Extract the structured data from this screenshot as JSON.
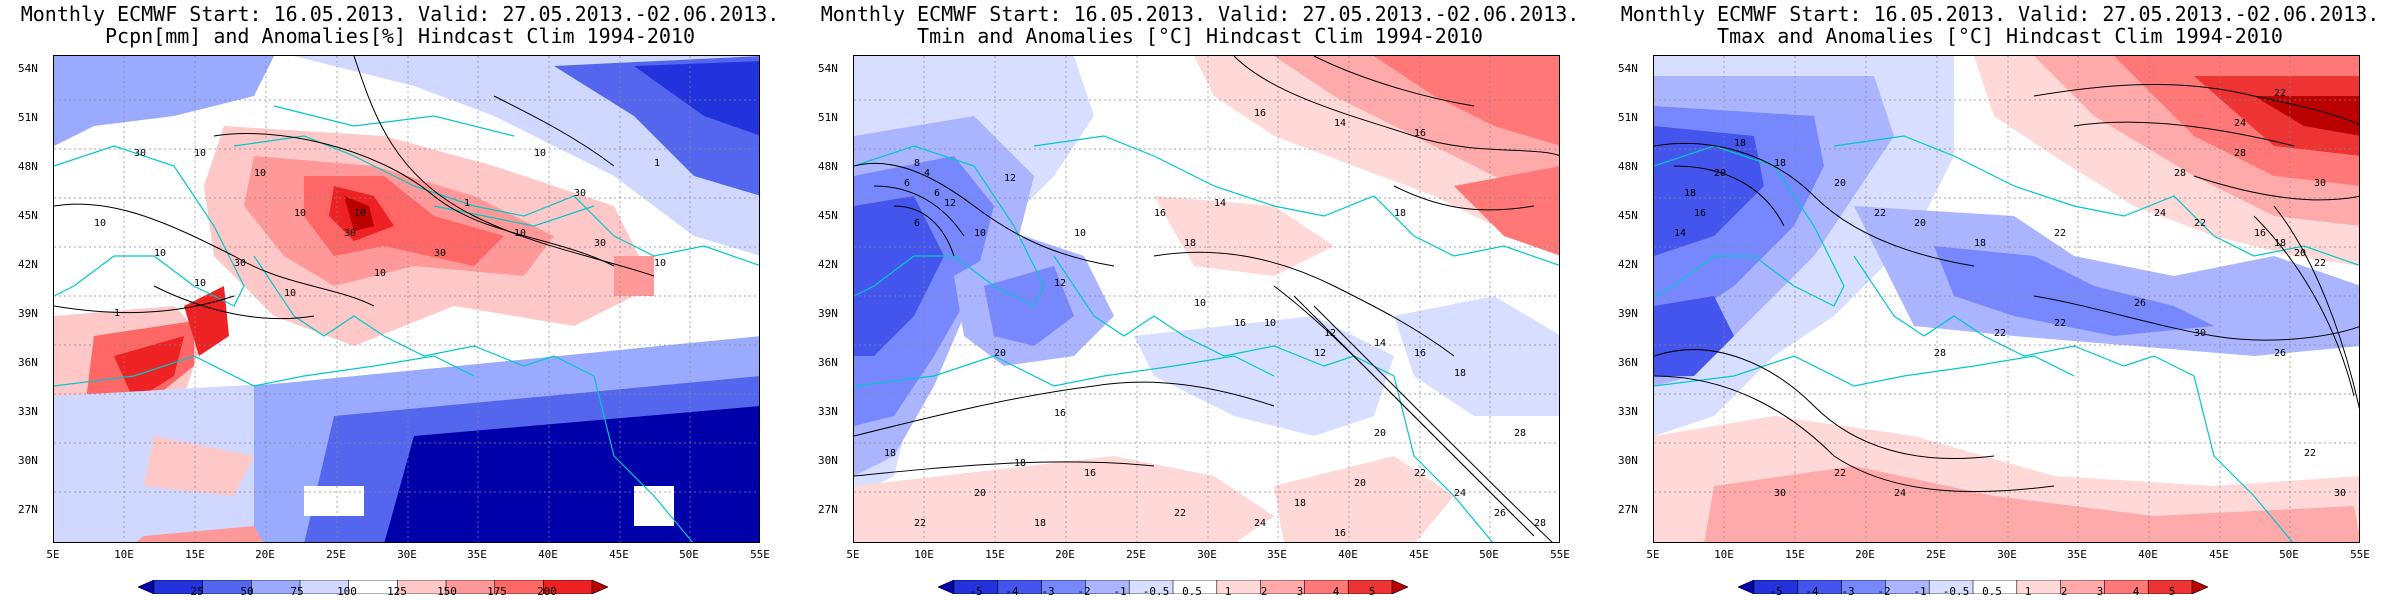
{
  "panels": [
    {
      "title_line1": "Monthly ECMWF Start: 16.05.2013. Valid: 27.05.2013.-02.06.2013.",
      "title_line2": "Pcpn[mm] and Anomalies[%] Hindcast Clim 1994-2010",
      "colorbar_labels": [
        "25",
        "50",
        "75",
        "100",
        "125",
        "150",
        "175",
        "200"
      ],
      "colorbar_colors": [
        "#0000aa",
        "#2233dd",
        "#5566ee",
        "#99aaff",
        "#d0d8ff",
        "#ffffff",
        "#ffc8c8",
        "#ff9999",
        "#ff6666",
        "#ee2222",
        "#bb0000"
      ],
      "contour_labels": [
        "30",
        "10",
        "10",
        "30",
        "1",
        "10",
        "30",
        "30",
        "1",
        "10",
        "10",
        "30",
        "10",
        "1",
        "10",
        "30",
        "10",
        "1",
        "10",
        "1",
        "10",
        "10",
        "30",
        "1",
        "30"
      ]
    },
    {
      "title_line1": "Monthly ECMWF Start: 16.05.2013. Valid: 27.05.2013.-02.06.2013.",
      "title_line2": "Tmin and Anomalies [°C] Hindcast Clim 1994-2010",
      "colorbar_labels": [
        "-5",
        "-4",
        "-3",
        "-2",
        "-1",
        "-0.5",
        "0.5",
        "1",
        "2",
        "3",
        "4",
        "5"
      ],
      "colorbar_colors": [
        "#0000aa",
        "#2233dd",
        "#4455ee",
        "#7788ff",
        "#aab4ff",
        "#d8deff",
        "#ffffff",
        "#ffd8d8",
        "#ffaaaa",
        "#ff7777",
        "#ee3333",
        "#bb0000"
      ],
      "contour_labels": [
        "14",
        "16",
        "16",
        "18",
        "8",
        "6",
        "4",
        "12",
        "6",
        "12",
        "10",
        "16",
        "14",
        "18",
        "6",
        "10",
        "12",
        "20",
        "18",
        "16",
        "18",
        "10",
        "16",
        "12",
        "10",
        "12",
        "14",
        "16",
        "18",
        "20",
        "22",
        "24",
        "26",
        "28",
        "20",
        "18",
        "16",
        "22",
        "22",
        "24",
        "20",
        "18",
        "16",
        "28"
      ]
    },
    {
      "title_line1": "Monthly ECMWF Start: 16.05.2013. Valid: 27.05.2013.-02.06.2013.",
      "title_line2": "Tmax and Anomalies [°C] Hindcast Clim 1994-2010",
      "colorbar_labels": [
        "-5",
        "-4",
        "-3",
        "-2",
        "-1",
        "-0.5",
        "0.5",
        "1",
        "2",
        "3",
        "4",
        "5"
      ],
      "colorbar_colors": [
        "#0000aa",
        "#2233dd",
        "#4455ee",
        "#7788ff",
        "#aab4ff",
        "#d8deff",
        "#ffffff",
        "#ffd8d8",
        "#ffaaaa",
        "#ff7777",
        "#ee3333",
        "#bb0000"
      ],
      "contour_labels": [
        "22",
        "24",
        "28",
        "28",
        "30",
        "18",
        "20",
        "18",
        "16",
        "14",
        "18",
        "20",
        "22",
        "20",
        "18",
        "22",
        "24",
        "22",
        "16",
        "18",
        "20",
        "22",
        "26",
        "22",
        "22",
        "28",
        "30",
        "22",
        "24",
        "30",
        "30",
        "26",
        "22"
      ]
    }
  ],
  "lat_labels": [
    "54N",
    "51N",
    "48N",
    "45N",
    "42N",
    "39N",
    "36N",
    "33N",
    "30N",
    "27N"
  ],
  "lon_labels": [
    "5E",
    "10E",
    "15E",
    "20E",
    "25E",
    "30E",
    "35E",
    "40E",
    "45E",
    "50E",
    "55E"
  ]
}
